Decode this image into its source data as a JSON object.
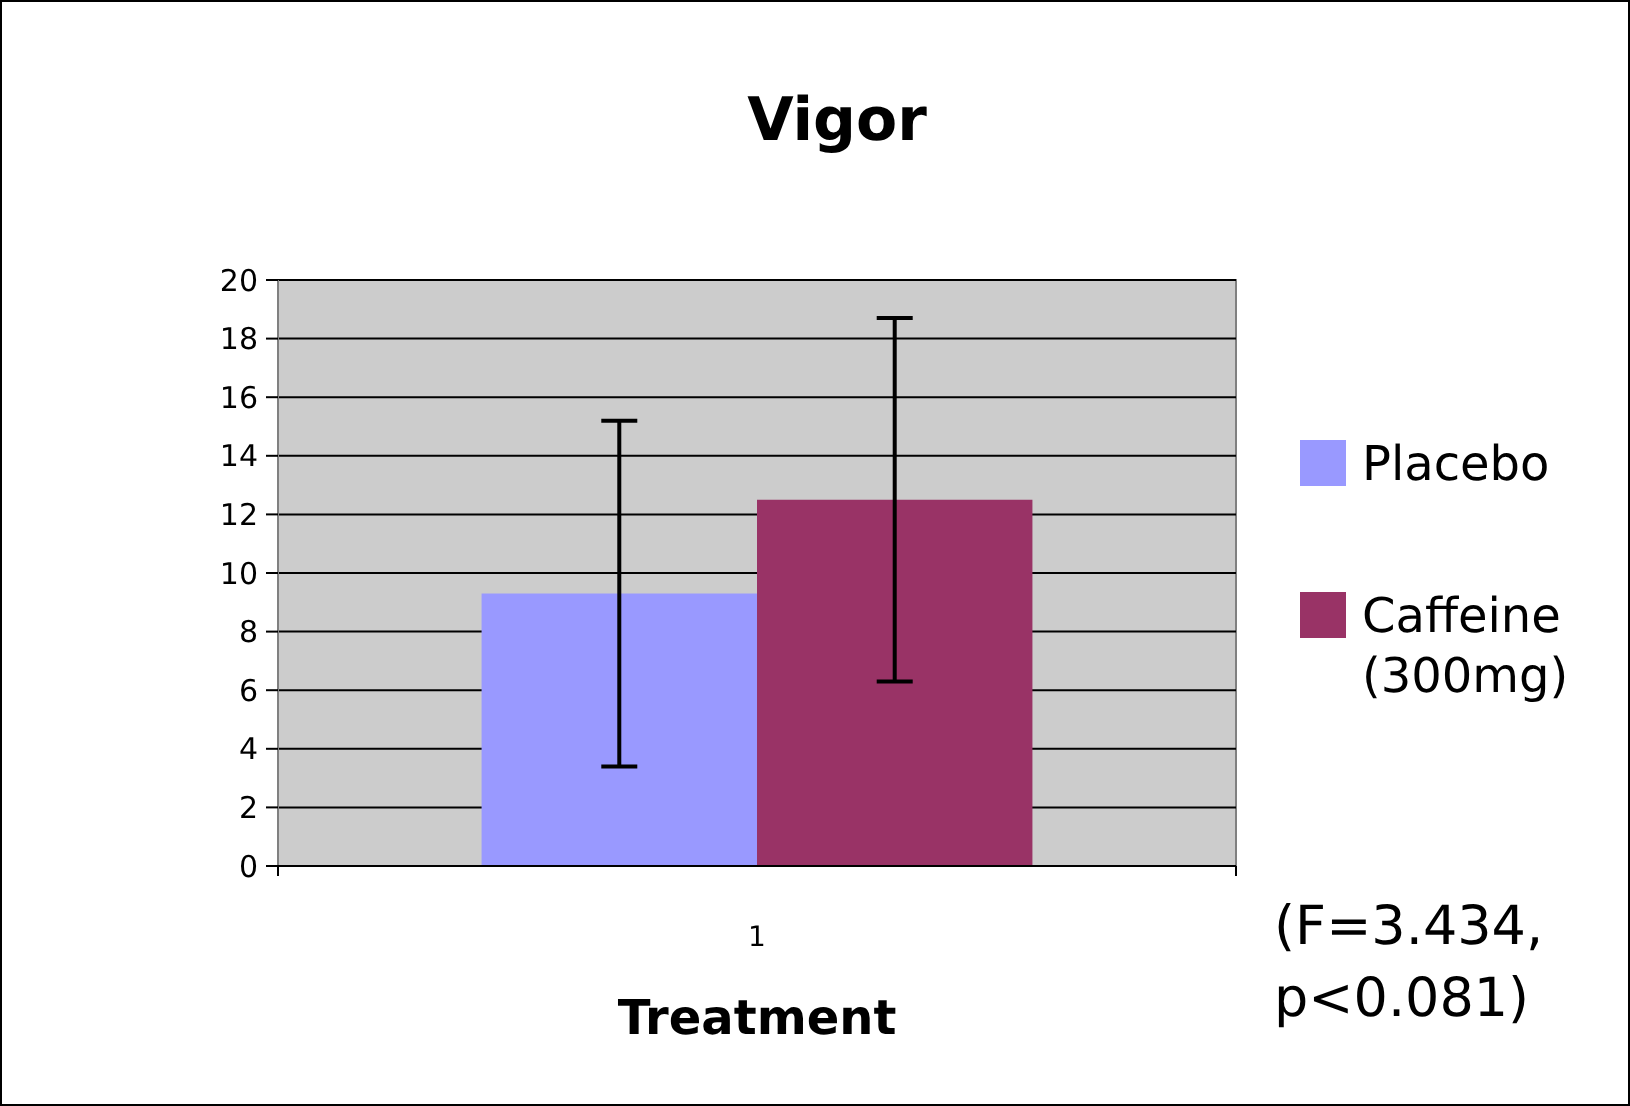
{
  "chart_data": {
    "type": "bar",
    "title": "Vigor",
    "xlabel": "Treatment",
    "categories": [
      "1"
    ],
    "series": [
      {
        "name": "Placebo",
        "color": "#9999ff",
        "values": [
          9.3
        ],
        "errors": [
          5.9
        ]
      },
      {
        "name": "Caffeine (300mg)",
        "color": "#993366",
        "values": [
          12.5
        ],
        "errors": [
          6.2
        ]
      }
    ],
    "ylim": [
      0,
      20
    ],
    "yticks": [
      0,
      2,
      4,
      6,
      8,
      10,
      12,
      14,
      16,
      18,
      20
    ],
    "grid": "y",
    "legend": "right",
    "annotations": [
      "(F=3.434, p<0.081)"
    ]
  }
}
